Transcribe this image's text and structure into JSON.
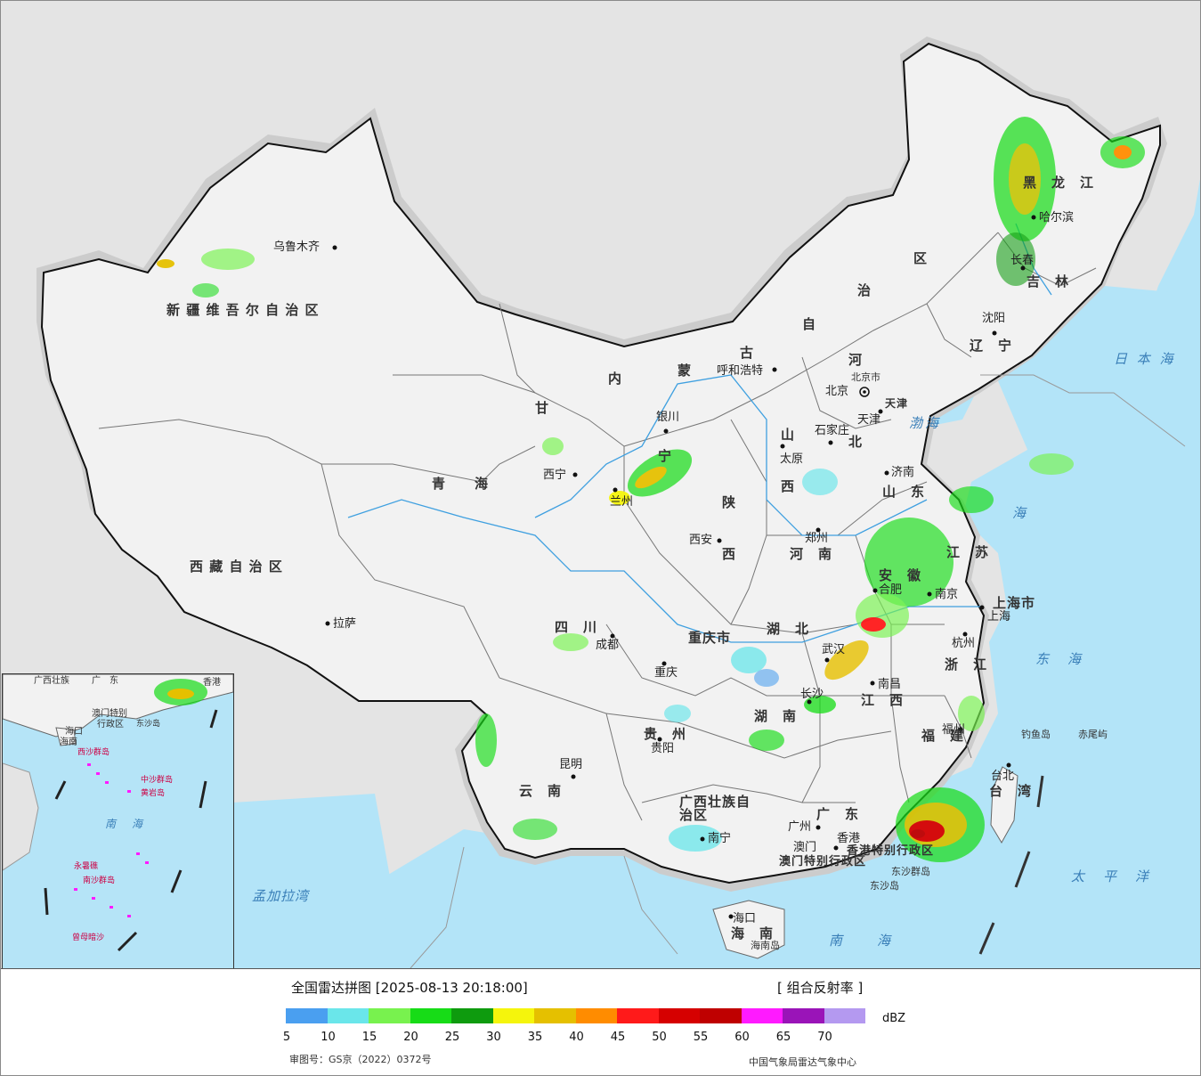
{
  "legend": {
    "title": "全国雷达拼图 [2025-08-13 20:18:00]",
    "product": "[ 组合反射率 ]",
    "unit": "dBZ",
    "ticks": [
      "5",
      "10",
      "15",
      "20",
      "25",
      "30",
      "35",
      "40",
      "45",
      "50",
      "55",
      "60",
      "65",
      "70"
    ],
    "colors": [
      "#4a9ff0",
      "#6ae6ea",
      "#78f24e",
      "#17dc17",
      "#0e9b0e",
      "#f5f50c",
      "#e5c000",
      "#ff8c00",
      "#ff1a1a",
      "#d60000",
      "#bf0000",
      "#ff1aff",
      "#9a14b8",
      "#b499f0"
    ],
    "approval": "审图号：GS京（2022）0372号",
    "producer": "中国气象局雷达气象中心"
  },
  "provinces": [
    {
      "id": "xinjiang",
      "text": "新 疆 维 吾 尔 自 治 区"
    },
    {
      "id": "xizang",
      "text": "西 藏 自 治 区"
    },
    {
      "id": "qinghai",
      "text": "青　　海"
    },
    {
      "id": "gansu",
      "text": "甘"
    },
    {
      "id": "neimenggu-1",
      "text": "内"
    },
    {
      "id": "neimenggu-2",
      "text": "蒙"
    },
    {
      "id": "neimenggu-3",
      "text": "古"
    },
    {
      "id": "neimenggu-4",
      "text": "自"
    },
    {
      "id": "neimenggu-5",
      "text": "治"
    },
    {
      "id": "neimenggu-6",
      "text": "区"
    },
    {
      "id": "heilongjiang",
      "text": "黑　龙　江"
    },
    {
      "id": "jilin",
      "text": "吉　林"
    },
    {
      "id": "liaoning",
      "text": "辽　宁"
    },
    {
      "id": "hebei-1",
      "text": "河"
    },
    {
      "id": "hebei-2",
      "text": "北"
    },
    {
      "id": "shanxi-1",
      "text": "山"
    },
    {
      "id": "shanxi-2",
      "text": "西"
    },
    {
      "id": "shaanxi-1",
      "text": "陕"
    },
    {
      "id": "shaanxi-2",
      "text": "西"
    },
    {
      "id": "ningxia",
      "text": "宁"
    },
    {
      "id": "shandong",
      "text": "山　东"
    },
    {
      "id": "henan",
      "text": "河　南"
    },
    {
      "id": "jiangsu",
      "text": "江　苏"
    },
    {
      "id": "anhui",
      "text": "安　徽"
    },
    {
      "id": "shanghai",
      "text": "上海市"
    },
    {
      "id": "zhejiang",
      "text": "浙　江"
    },
    {
      "id": "hubei",
      "text": "湖　北"
    },
    {
      "id": "hunan",
      "text": "湖　南"
    },
    {
      "id": "jiangxi",
      "text": "江　西"
    },
    {
      "id": "fujian",
      "text": "福　建"
    },
    {
      "id": "taiwan",
      "text": "台　湾"
    },
    {
      "id": "sichuan",
      "text": "四　川"
    },
    {
      "id": "chongqing",
      "text": "重庆市"
    },
    {
      "id": "guizhou",
      "text": "贵　州"
    },
    {
      "id": "yunnan",
      "text": "云　南"
    },
    {
      "id": "guangxi",
      "text": "广西壮族自治区"
    },
    {
      "id": "guangdong",
      "text": "广　东"
    },
    {
      "id": "hainan",
      "text": "海　南"
    },
    {
      "id": "hk",
      "text": "香港特别行政区"
    },
    {
      "id": "macau",
      "text": "澳门特别行政区"
    },
    {
      "id": "tianjin",
      "text": "天津"
    },
    {
      "id": "beijing",
      "text": "北京市"
    }
  ],
  "cities": [
    {
      "id": "urumqi",
      "text": "乌鲁木齐"
    },
    {
      "id": "lhasa",
      "text": "拉萨"
    },
    {
      "id": "xining",
      "text": "西宁"
    },
    {
      "id": "lanzhou",
      "text": "兰州"
    },
    {
      "id": "yinchuan",
      "text": "银川"
    },
    {
      "id": "hohhot",
      "text": "呼和浩特"
    },
    {
      "id": "harbin",
      "text": "哈尔滨"
    },
    {
      "id": "changchun",
      "text": "长春"
    },
    {
      "id": "shenyang",
      "text": "沈阳"
    },
    {
      "id": "beijing",
      "text": "北京"
    },
    {
      "id": "tianjin",
      "text": "天津"
    },
    {
      "id": "shijiazhuang",
      "text": "石家庄"
    },
    {
      "id": "taiyuan",
      "text": "太原"
    },
    {
      "id": "jinan",
      "text": "济南"
    },
    {
      "id": "zhengzhou",
      "text": "郑州"
    },
    {
      "id": "xian",
      "text": "西安"
    },
    {
      "id": "nanjing",
      "text": "南京"
    },
    {
      "id": "hefei",
      "text": "合肥"
    },
    {
      "id": "shanghai",
      "text": "上海"
    },
    {
      "id": "hangzhou",
      "text": "杭州"
    },
    {
      "id": "wuhan",
      "text": "武汉"
    },
    {
      "id": "changsha",
      "text": "长沙"
    },
    {
      "id": "nanchang",
      "text": "南昌"
    },
    {
      "id": "fuzhou",
      "text": "福州"
    },
    {
      "id": "taibei",
      "text": "台北"
    },
    {
      "id": "chengdu",
      "text": "成都"
    },
    {
      "id": "chongqing",
      "text": "重庆"
    },
    {
      "id": "guiyang",
      "text": "贵阳"
    },
    {
      "id": "kunming",
      "text": "昆明"
    },
    {
      "id": "nanning",
      "text": "南宁"
    },
    {
      "id": "guangzhou",
      "text": "广州"
    },
    {
      "id": "xianggang",
      "text": "香港"
    },
    {
      "id": "aomen",
      "text": "澳门"
    },
    {
      "id": "haikou",
      "text": "海口"
    }
  ],
  "seas": [
    {
      "id": "riben-hai",
      "text": "日 本 海"
    },
    {
      "id": "bohai",
      "text": "渤海"
    },
    {
      "id": "huanghai",
      "text": "海"
    },
    {
      "id": "donghai",
      "text": "东　海"
    },
    {
      "id": "taipingyang",
      "text": "太　平　洋"
    },
    {
      "id": "nanhai",
      "text": "南　　海"
    },
    {
      "id": "mengjiala",
      "text": "孟加拉湾"
    }
  ],
  "islands": [
    {
      "id": "diaoyu",
      "text": "钓鱼岛"
    },
    {
      "id": "chiwei",
      "text": "赤尾屿"
    },
    {
      "id": "dongsha",
      "text": "东沙群岛"
    },
    {
      "id": "dongsha-dao",
      "text": "东沙岛"
    },
    {
      "id": "hainan-dao",
      "text": "海南岛"
    }
  ],
  "inset": {
    "labels": [
      "广西壮族",
      "广　东",
      "香港",
      "澳门特别",
      "行政区",
      "海口",
      "海南",
      "西沙群岛",
      "中沙群岛",
      "黄岩岛",
      "南　海",
      "永暑礁",
      "南沙群岛",
      "曾母暗沙",
      "东沙岛"
    ]
  }
}
